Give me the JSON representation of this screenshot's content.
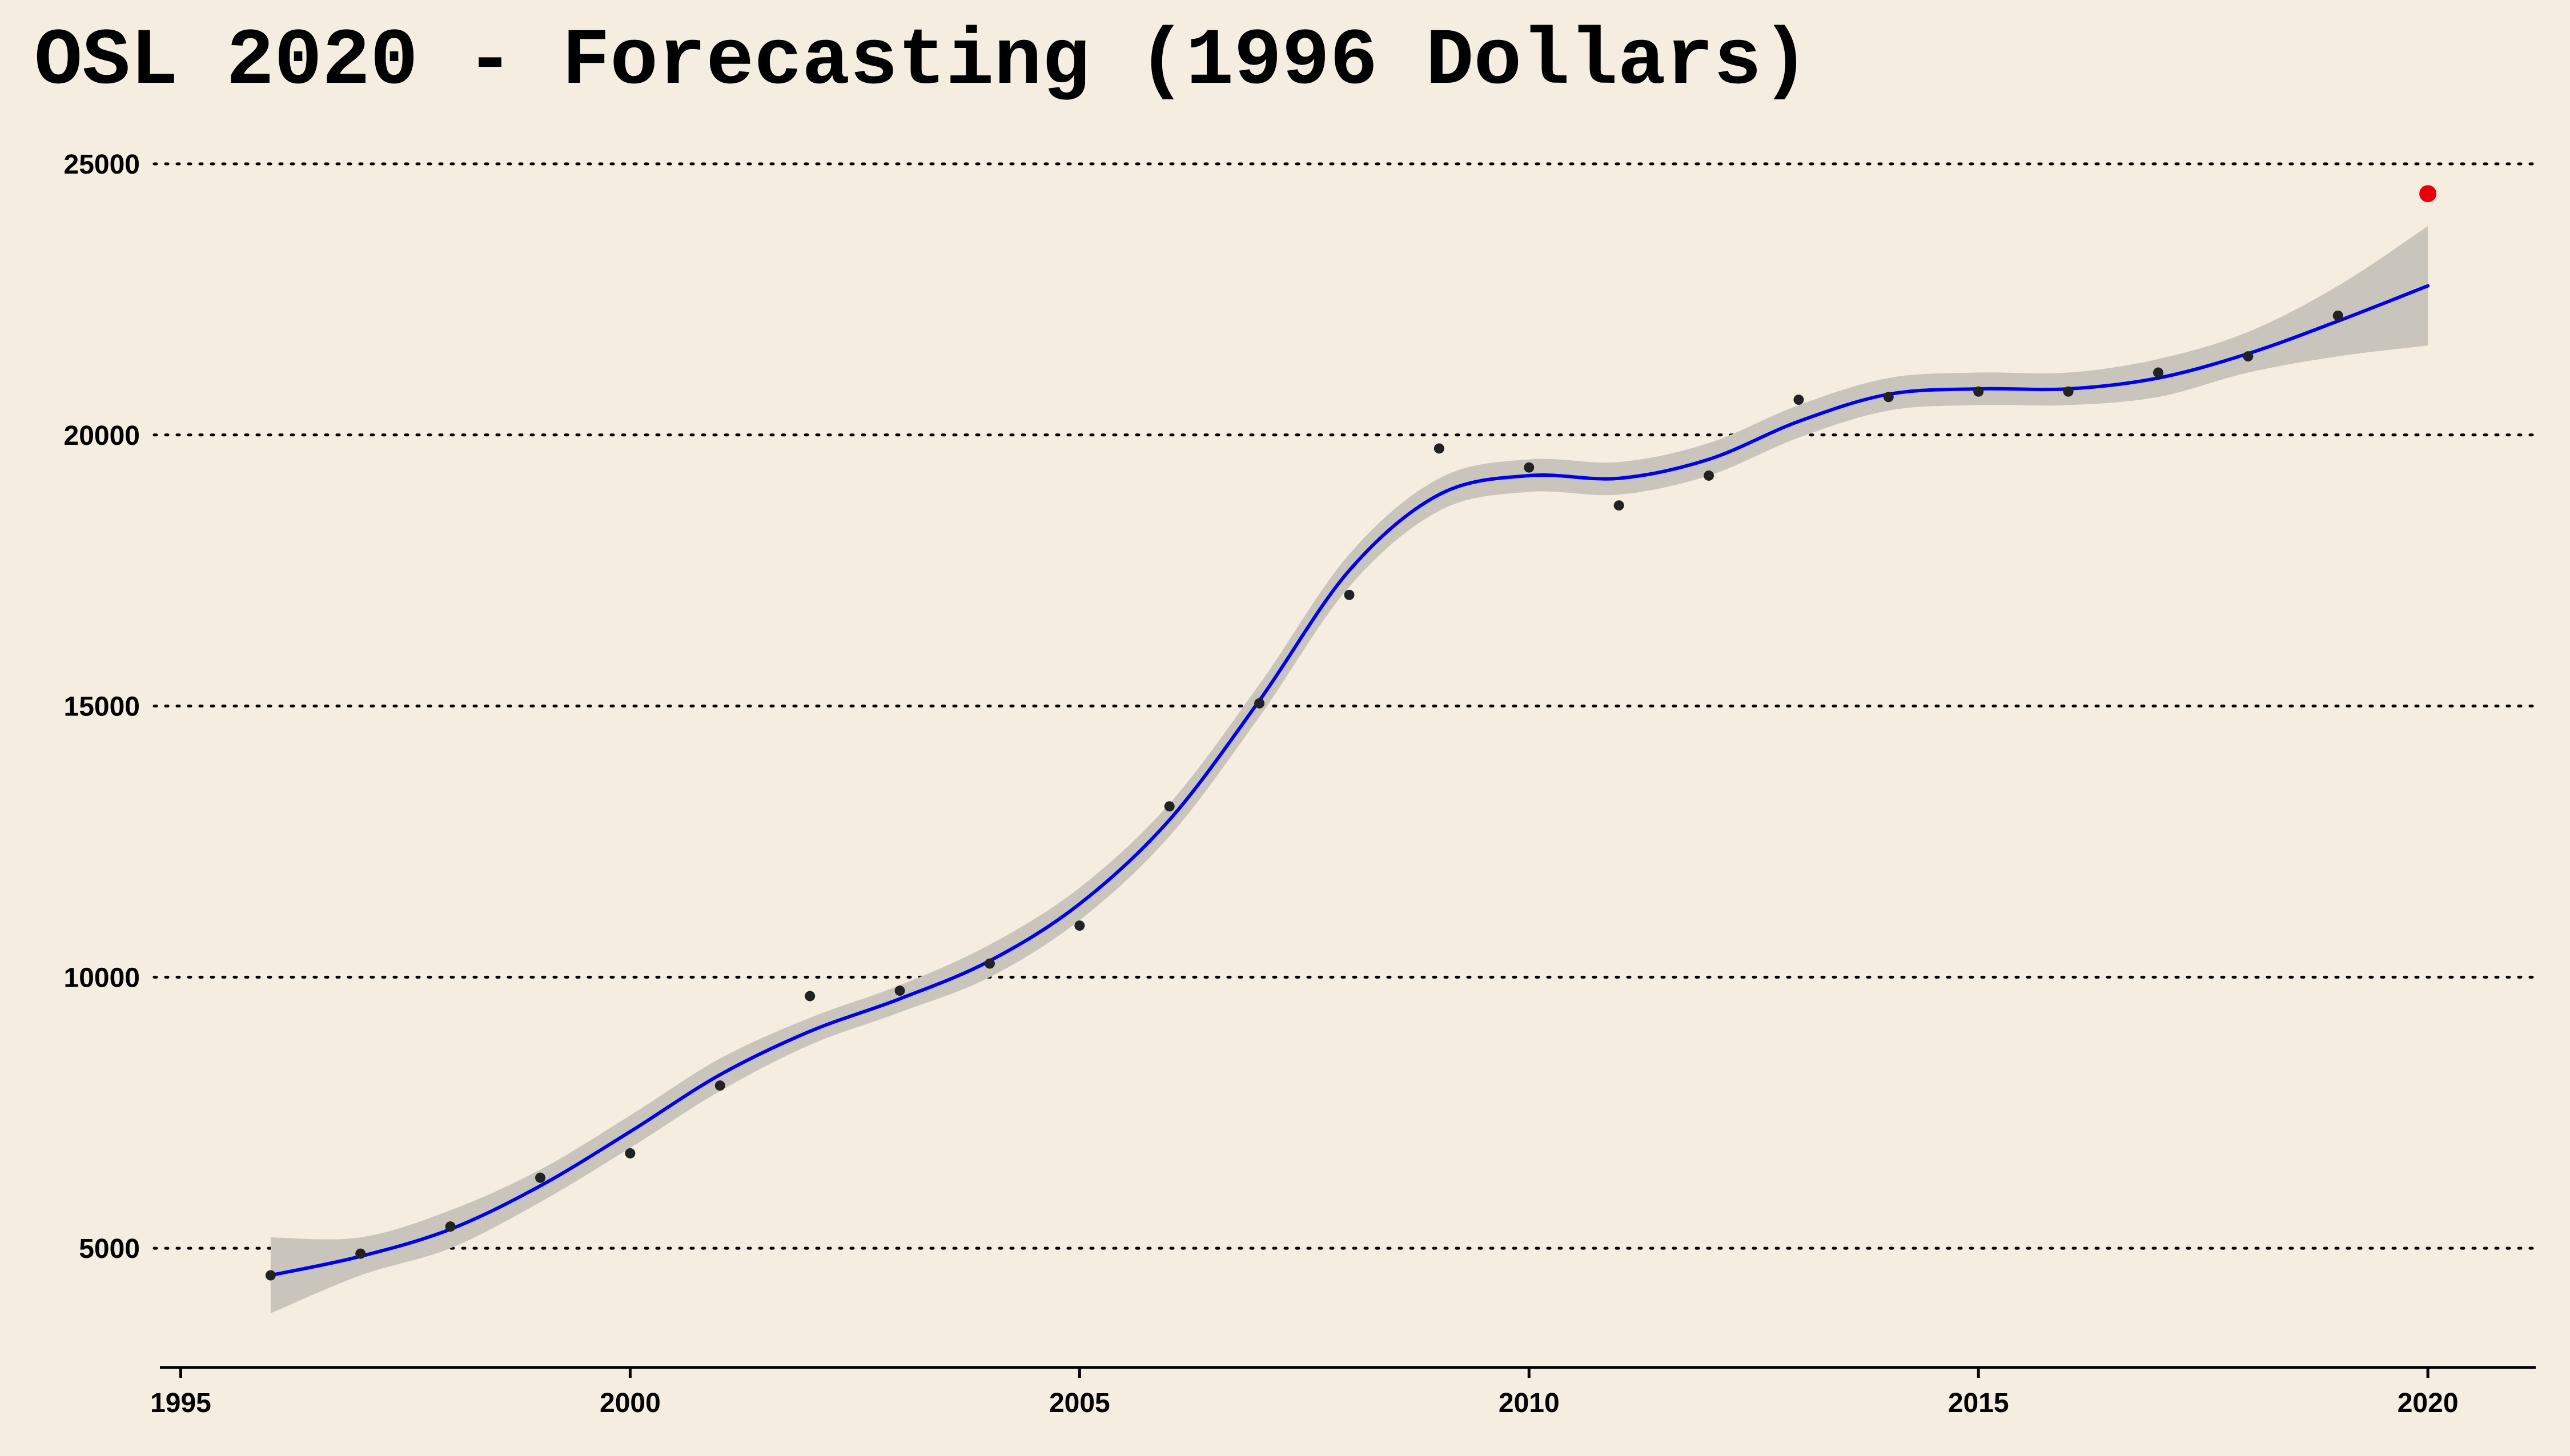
{
  "chart_data": {
    "type": "line",
    "title": "OSL 2020 - Forecasting (1996 Dollars)",
    "xlabel": "",
    "ylabel": "",
    "xlim": [
      1994.8,
      2021.2
    ],
    "ylim": [
      2800,
      25600
    ],
    "x_ticks": [
      1995,
      2000,
      2005,
      2010,
      2015,
      2020
    ],
    "x_tick_labels": [
      "1995",
      "2000",
      "2005",
      "2010",
      "2015",
      "2020"
    ],
    "y_ticks": [
      5000,
      10000,
      15000,
      20000,
      25000
    ],
    "y_tick_labels": [
      "5000",
      "10000",
      "15000",
      "20000",
      "25000"
    ],
    "grid": "horizontal-dotted",
    "legend": "none",
    "series": [
      {
        "kind": "points",
        "x": [
          1996,
          1997,
          1998,
          1999,
          2000,
          2001,
          2002,
          2003,
          2004,
          2005,
          2006,
          2007,
          2008,
          2009,
          2010,
          2011,
          2012,
          2013,
          2014,
          2015,
          2016,
          2017,
          2018,
          2019
        ],
        "y": [
          4500,
          4900,
          5400,
          6300,
          6750,
          8000,
          9650,
          9750,
          10250,
          10950,
          13150,
          15050,
          17050,
          19750,
          19400,
          18700,
          19250,
          20650,
          20700,
          20800,
          20800,
          21150,
          21450,
          22200
        ],
        "color": "#222222"
      },
      {
        "kind": "smooth-fit",
        "x": [
          1996,
          1997,
          1998,
          1999,
          2000,
          2001,
          2002,
          2003,
          2004,
          2005,
          2006,
          2007,
          2008,
          2009,
          2010,
          2011,
          2012,
          2013,
          2014,
          2015,
          2016,
          2017,
          2018,
          2019,
          2020
        ],
        "y": [
          4500,
          4850,
          5350,
          6150,
          7150,
          8200,
          9000,
          9600,
          10300,
          11350,
          12900,
          15100,
          17500,
          18900,
          19250,
          19200,
          19550,
          20250,
          20750,
          20850,
          20850,
          21050,
          21500,
          22100,
          22750
        ],
        "ci_upper": [
          5200,
          5200,
          5700,
          6450,
          7450,
          8500,
          9250,
          9850,
          10600,
          11650,
          13200,
          15400,
          17800,
          19200,
          19550,
          19500,
          19850,
          20550,
          21050,
          21150,
          21150,
          21400,
          21900,
          22750,
          23850
        ],
        "ci_lower": [
          3800,
          4500,
          5000,
          5850,
          6850,
          7900,
          8750,
          9350,
          10000,
          11050,
          12600,
          14800,
          17200,
          18600,
          18950,
          18900,
          19250,
          19950,
          20450,
          20550,
          20550,
          20700,
          21150,
          21450,
          21650
        ],
        "color": "#0000ee",
        "band_color": "#c9c5bd"
      },
      {
        "kind": "forecast-point",
        "x": [
          2020
        ],
        "y": [
          24450
        ],
        "color": "#e8000b"
      }
    ]
  }
}
